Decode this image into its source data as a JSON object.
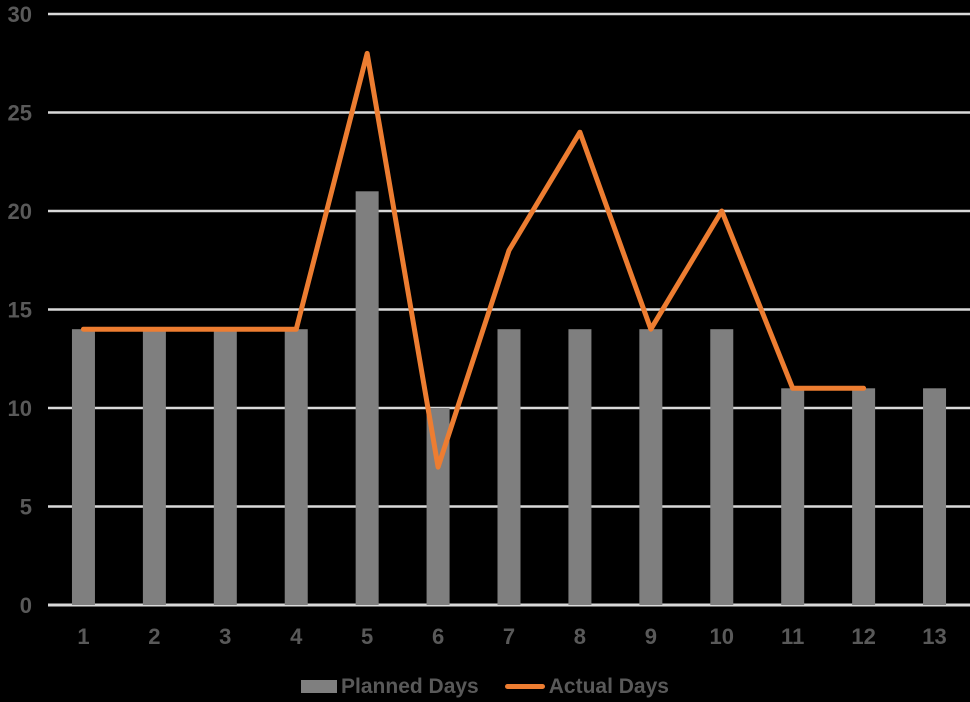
{
  "chart_data": {
    "type": "combo",
    "title": "",
    "xlabel": "",
    "ylabel": "",
    "categories": [
      "1",
      "2",
      "3",
      "4",
      "5",
      "6",
      "7",
      "8",
      "9",
      "10",
      "11",
      "12",
      "13"
    ],
    "series": [
      {
        "name": "Planned Days",
        "type": "bar",
        "color": "#7f7f7f",
        "values": [
          14,
          14,
          14,
          14,
          21,
          10,
          14,
          14,
          14,
          14,
          11,
          11,
          11
        ]
      },
      {
        "name": "Actual Days",
        "type": "line",
        "color": "#ed7d31",
        "values": [
          14,
          14,
          14,
          14,
          28,
          7,
          18,
          24,
          14,
          20,
          11,
          11,
          null
        ]
      }
    ],
    "ylim": [
      0,
      30
    ],
    "yticks": [
      0,
      5,
      10,
      15,
      20,
      25,
      30
    ],
    "grid": true,
    "legend_position": "bottom",
    "colors": {
      "background": "#000000",
      "gridline": "#d9d9d9",
      "axis_text": "#595959"
    }
  }
}
